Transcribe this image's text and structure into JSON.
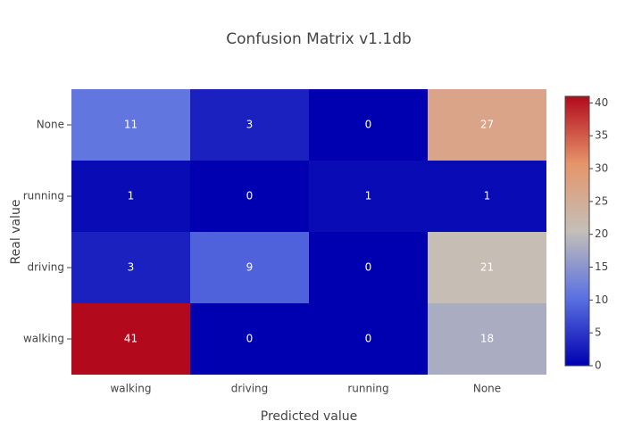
{
  "chart_data": {
    "type": "heatmap",
    "title": "Confusion Matrix v1.1db",
    "x_label": "Predicted value",
    "y_label": "Real value",
    "x": [
      "walking",
      "driving",
      "running",
      "None"
    ],
    "y": [
      "walking",
      "driving",
      "running",
      "None"
    ],
    "z": [
      [
        41,
        0,
        0,
        18
      ],
      [
        3,
        9,
        0,
        21
      ],
      [
        1,
        0,
        1,
        1
      ],
      [
        11,
        3,
        0,
        27
      ]
    ],
    "zlim": [
      0,
      41
    ],
    "zticks": [
      0,
      5,
      10,
      15,
      20,
      25,
      30,
      35,
      40
    ],
    "colorscale": [
      [
        0,
        "#0000b0"
      ],
      [
        0.25,
        "#5a70e2"
      ],
      [
        0.5,
        "#c4bfb8"
      ],
      [
        0.75,
        "#e5956a"
      ],
      [
        1,
        "#b20a1c"
      ]
    ]
  }
}
